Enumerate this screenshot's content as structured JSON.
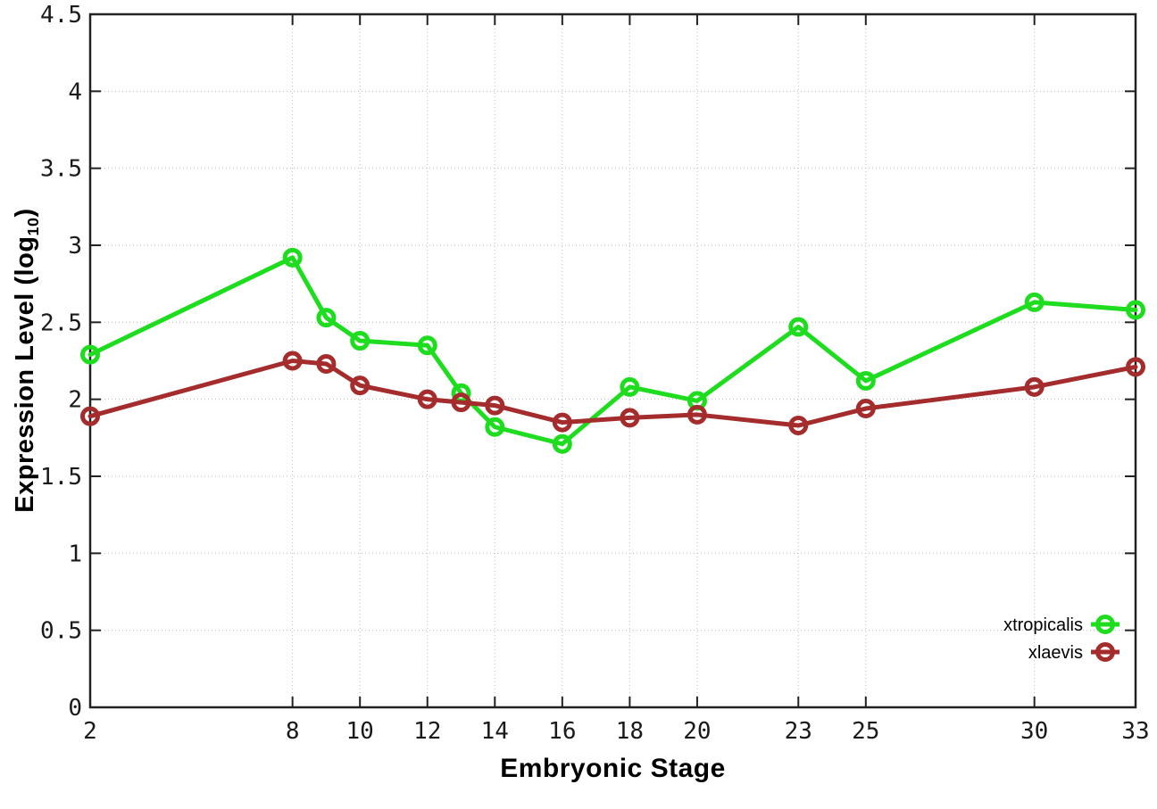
{
  "ui": {
    "xlabel": "Embryonic Stage",
    "ylabel_pre": "Expression Level (log",
    "ylabel_sub": "10",
    "ylabel_post": ")"
  },
  "chart_data": {
    "type": "line",
    "title": "",
    "xlabel": "Embryonic Stage",
    "ylabel": "Expression Level (log10)",
    "x": [
      2,
      8,
      9,
      10,
      12,
      13,
      14,
      16,
      18,
      20,
      23,
      25,
      30,
      33
    ],
    "series": [
      {
        "name": "xtropicalis",
        "color": "#1edc1e",
        "marker": "open-circle",
        "values": [
          2.29,
          2.92,
          2.53,
          2.38,
          2.35,
          2.04,
          1.82,
          1.71,
          2.08,
          1.99,
          2.47,
          2.12,
          2.63,
          2.58
        ]
      },
      {
        "name": "xlaevis",
        "color": "#a52c2c",
        "marker": "open-circle",
        "values": [
          1.89,
          2.25,
          2.23,
          2.09,
          2.0,
          1.98,
          1.96,
          1.85,
          1.88,
          1.9,
          1.83,
          1.94,
          2.08,
          2.21
        ]
      }
    ],
    "xticks": [
      2,
      8,
      10,
      12,
      14,
      16,
      18,
      20,
      23,
      25,
      30,
      33
    ],
    "yticks": [
      0,
      0.5,
      1,
      1.5,
      2,
      2.5,
      3,
      3.5,
      4,
      4.5
    ],
    "xlim": [
      2,
      33
    ],
    "ylim": [
      0,
      4.5
    ],
    "grid": true,
    "legend_position": "bottom-right",
    "colors": {
      "grid": "#bdbdbd",
      "border": "#222222",
      "tick": "#222222",
      "background": "#ffffff"
    }
  }
}
